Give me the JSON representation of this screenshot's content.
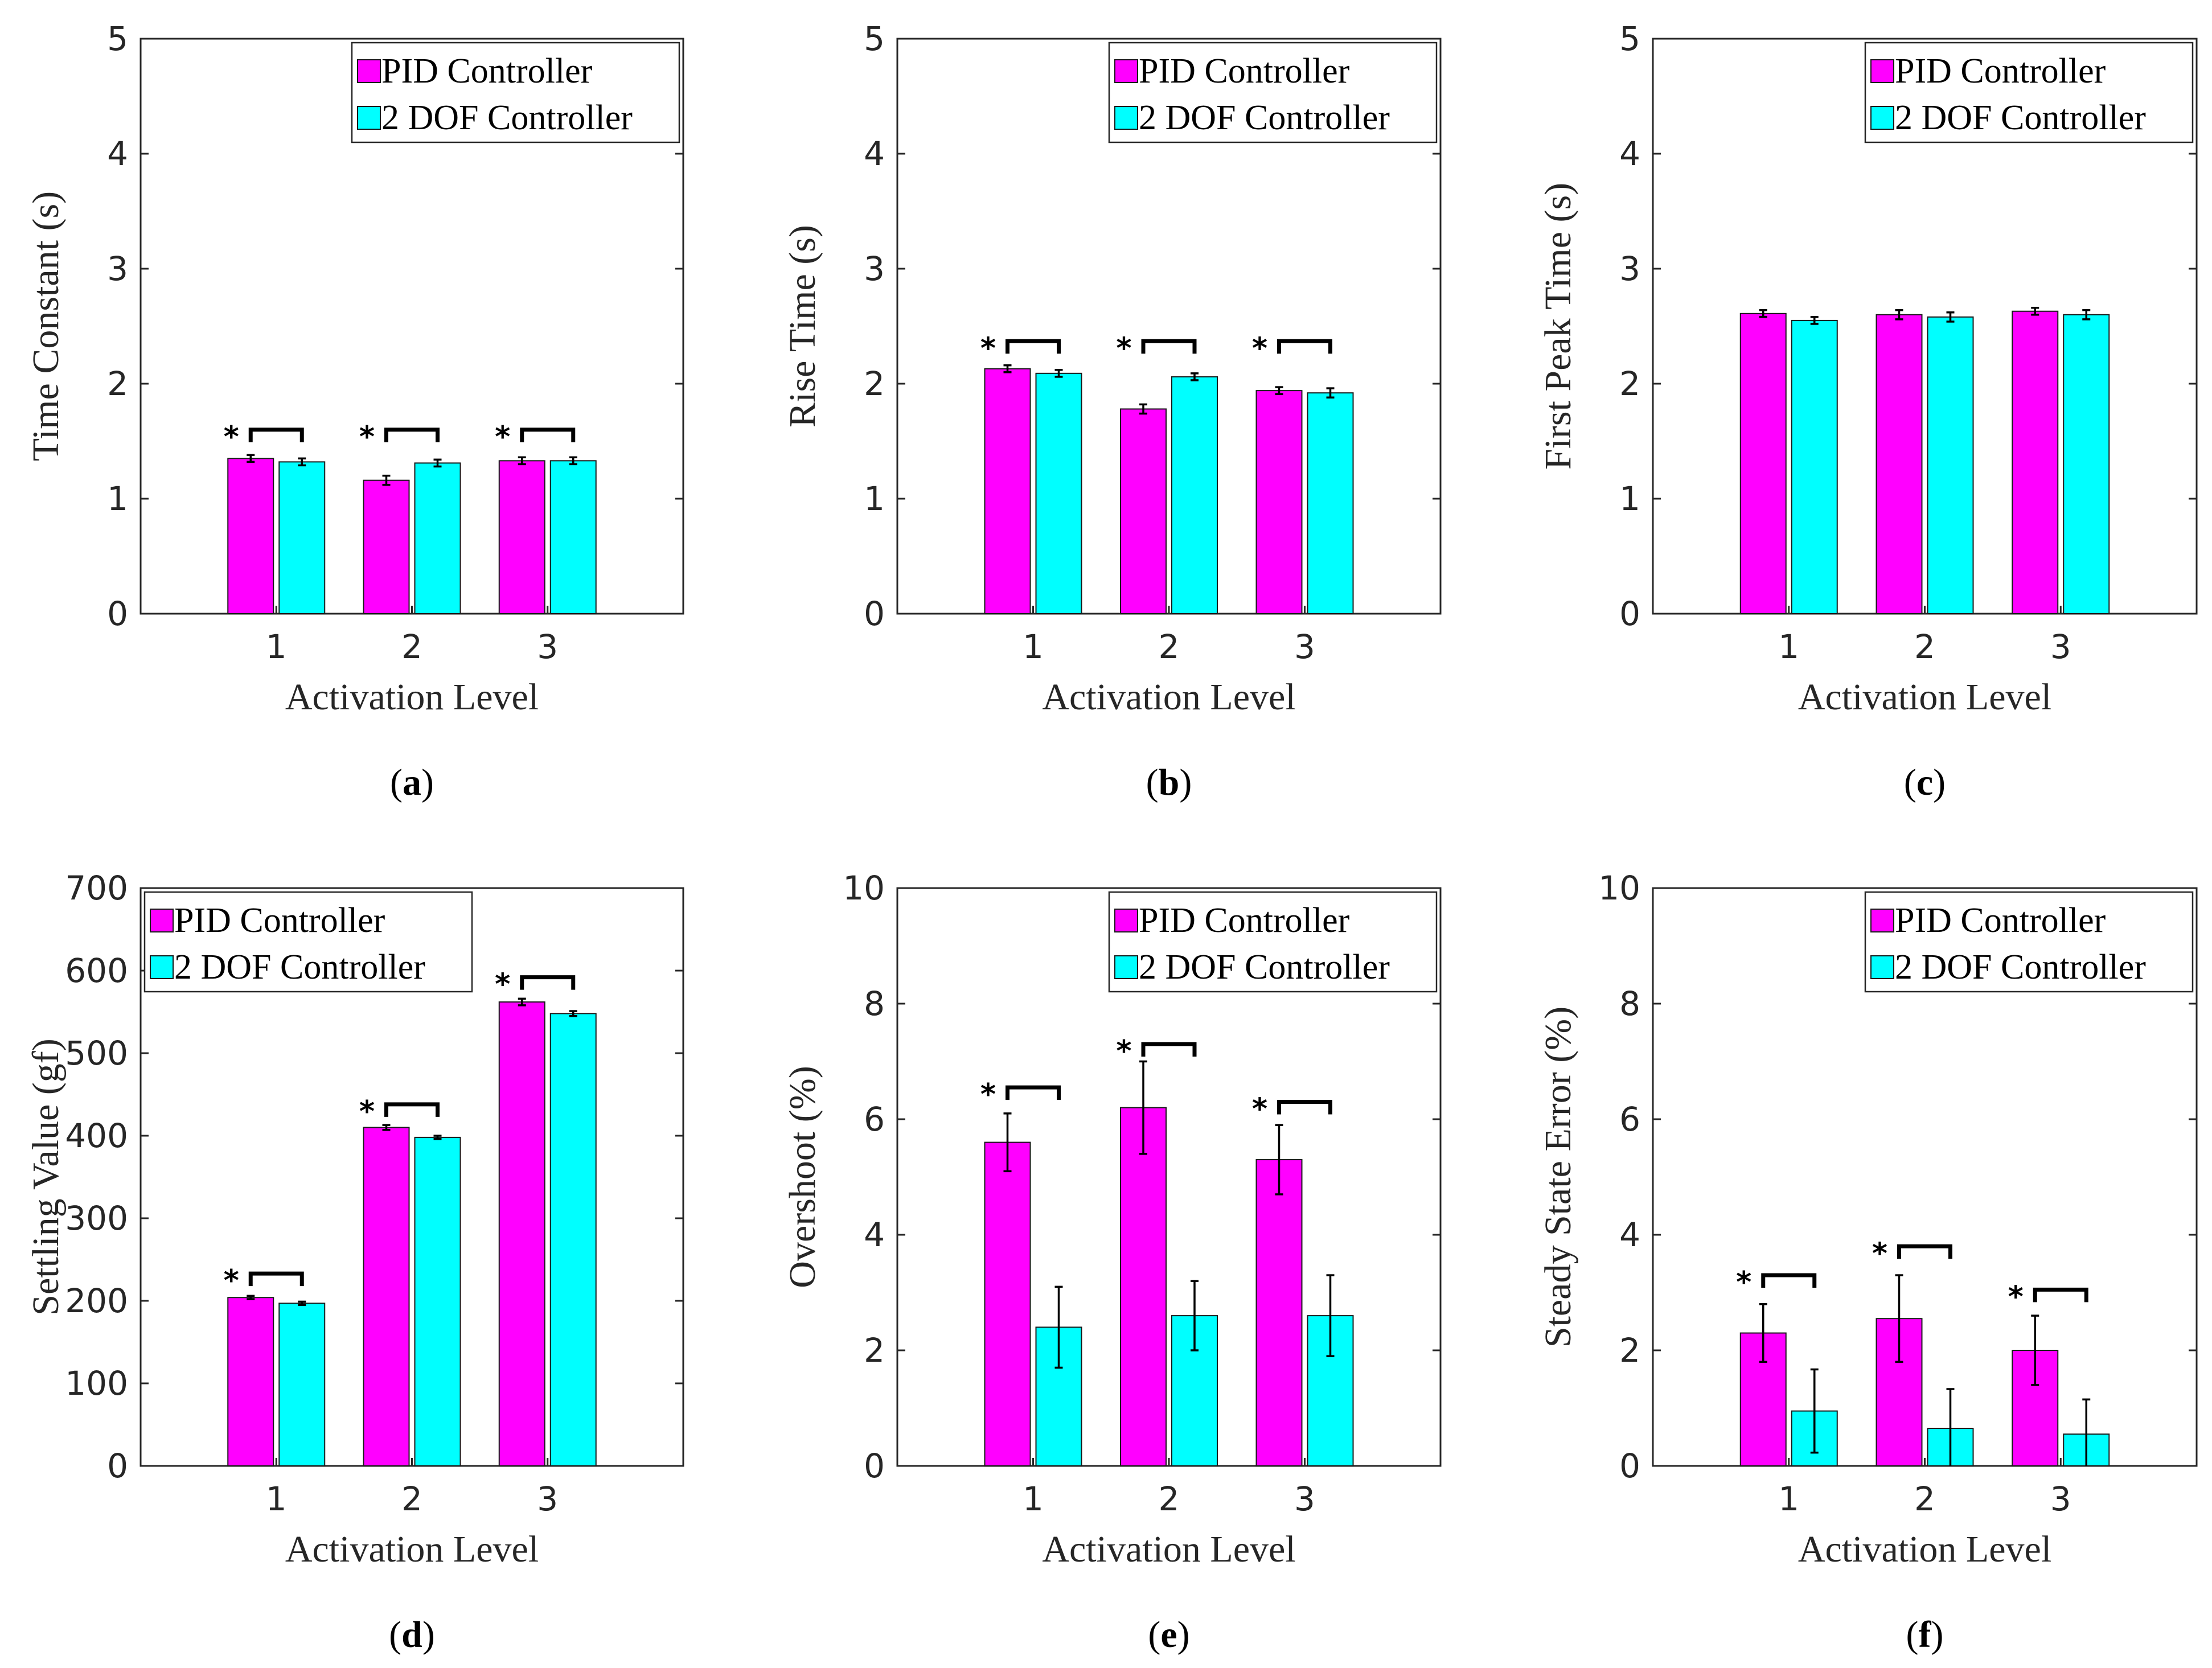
{
  "figure": {
    "colors": {
      "pid": "#ff00ff",
      "dof": "#00ffff",
      "axis": "#262626",
      "grid_box": "#262626"
    }
  },
  "chart_data": [
    {
      "type": "bar",
      "caption_letter": "a",
      "xlabel": "Activation Level",
      "ylabel": "Time Constant (s)",
      "ylim": [
        0,
        5
      ],
      "yticks": [
        0,
        1,
        2,
        3,
        4,
        5
      ],
      "categories": [
        "1",
        "2",
        "3"
      ],
      "legend": {
        "placement": "top-right",
        "entries": [
          "PID Controller",
          "2 DOF Controller"
        ]
      },
      "series": [
        {
          "name": "PID Controller",
          "values": [
            1.35,
            1.16,
            1.33
          ],
          "errors": [
            0.03,
            0.04,
            0.03
          ]
        },
        {
          "name": "2 DOF Controller",
          "values": [
            1.32,
            1.31,
            1.33
          ],
          "errors": [
            0.03,
            0.03,
            0.03
          ]
        }
      ],
      "significance": [
        {
          "category": 0,
          "bracket_y": 1.6,
          "label": "*"
        },
        {
          "category": 1,
          "bracket_y": 1.6,
          "label": "*"
        },
        {
          "category": 2,
          "bracket_y": 1.6,
          "label": "*"
        }
      ]
    },
    {
      "type": "bar",
      "caption_letter": "b",
      "xlabel": "Activation Level",
      "ylabel": "Rise Time (s)",
      "ylim": [
        0,
        5
      ],
      "yticks": [
        0,
        1,
        2,
        3,
        4,
        5
      ],
      "categories": [
        "1",
        "2",
        "3"
      ],
      "legend": {
        "placement": "top-right",
        "entries": [
          "PID Controller",
          "2 DOF Controller"
        ]
      },
      "series": [
        {
          "name": "PID Controller",
          "values": [
            2.13,
            1.78,
            1.94
          ],
          "errors": [
            0.03,
            0.04,
            0.03
          ]
        },
        {
          "name": "2 DOF Controller",
          "values": [
            2.09,
            2.06,
            1.92
          ],
          "errors": [
            0.03,
            0.03,
            0.04
          ]
        }
      ],
      "significance": [
        {
          "category": 0,
          "bracket_y": 2.37,
          "label": "*"
        },
        {
          "category": 1,
          "bracket_y": 2.37,
          "label": "*"
        },
        {
          "category": 2,
          "bracket_y": 2.37,
          "label": "*"
        }
      ]
    },
    {
      "type": "bar",
      "caption_letter": "c",
      "xlabel": "Activation Level",
      "ylabel": "First Peak Time (s)",
      "ylim": [
        0,
        5
      ],
      "yticks": [
        0,
        1,
        2,
        3,
        4,
        5
      ],
      "categories": [
        "1",
        "2",
        "3"
      ],
      "legend": {
        "placement": "top-right",
        "entries": [
          "PID Controller",
          "2 DOF Controller"
        ]
      },
      "series": [
        {
          "name": "PID Controller",
          "values": [
            2.61,
            2.6,
            2.63
          ],
          "errors": [
            0.03,
            0.04,
            0.03
          ]
        },
        {
          "name": "2 DOF Controller",
          "values": [
            2.55,
            2.58,
            2.6
          ],
          "errors": [
            0.03,
            0.04,
            0.04
          ]
        }
      ],
      "significance": []
    },
    {
      "type": "bar",
      "caption_letter": "d",
      "xlabel": "Activation Level",
      "ylabel": "Settling Value (gf)",
      "ylim": [
        0,
        700
      ],
      "yticks": [
        0,
        100,
        200,
        300,
        400,
        500,
        600,
        700
      ],
      "categories": [
        "1",
        "2",
        "3"
      ],
      "legend": {
        "placement": "top-left",
        "entries": [
          "PID Controller",
          "2 DOF Controller"
        ]
      },
      "series": [
        {
          "name": "PID Controller",
          "values": [
            204,
            410,
            562
          ],
          "errors": [
            2,
            3,
            4
          ]
        },
        {
          "name": "2 DOF Controller",
          "values": [
            197,
            398,
            548
          ],
          "errors": [
            2,
            2,
            3
          ]
        }
      ],
      "significance": [
        {
          "category": 0,
          "bracket_y": 233,
          "label": "*"
        },
        {
          "category": 1,
          "bracket_y": 438,
          "label": "*"
        },
        {
          "category": 2,
          "bracket_y": 592,
          "label": "*"
        }
      ]
    },
    {
      "type": "bar",
      "caption_letter": "e",
      "xlabel": "Activation Level",
      "ylabel": "Overshoot (%)",
      "ylim": [
        0,
        10
      ],
      "yticks": [
        0,
        2,
        4,
        6,
        8,
        10
      ],
      "categories": [
        "1",
        "2",
        "3"
      ],
      "legend": {
        "placement": "top-right",
        "entries": [
          "PID Controller",
          "2 DOF Controller"
        ]
      },
      "series": [
        {
          "name": "PID Controller",
          "values": [
            5.6,
            6.2,
            5.3
          ],
          "errors": [
            0.5,
            0.8,
            0.6
          ]
        },
        {
          "name": "2 DOF Controller",
          "values": [
            2.4,
            2.6,
            2.6
          ],
          "errors": [
            0.7,
            0.6,
            0.7
          ]
        }
      ],
      "significance": [
        {
          "category": 0,
          "bracket_y": 6.55,
          "label": "*"
        },
        {
          "category": 1,
          "bracket_y": 7.3,
          "label": "*"
        },
        {
          "category": 2,
          "bracket_y": 6.3,
          "label": "*"
        }
      ]
    },
    {
      "type": "bar",
      "caption_letter": "f",
      "xlabel": "Activation Level",
      "ylabel": "Steady State Error (%)",
      "ylim": [
        0,
        10
      ],
      "yticks": [
        0,
        2,
        4,
        6,
        8,
        10
      ],
      "categories": [
        "1",
        "2",
        "3"
      ],
      "legend": {
        "placement": "top-right",
        "entries": [
          "PID Controller",
          "2 DOF Controller"
        ]
      },
      "series": [
        {
          "name": "PID Controller",
          "values": [
            2.3,
            2.55,
            2.0
          ],
          "errors": [
            0.5,
            0.75,
            0.6
          ]
        },
        {
          "name": "2 DOF Controller",
          "values": [
            0.95,
            0.65,
            0.55
          ],
          "errors": [
            0.72,
            0.68,
            0.6
          ]
        }
      ],
      "significance": [
        {
          "category": 0,
          "bracket_y": 3.3,
          "label": "*"
        },
        {
          "category": 1,
          "bracket_y": 3.8,
          "label": "*"
        },
        {
          "category": 2,
          "bracket_y": 3.05,
          "label": "*"
        }
      ]
    }
  ]
}
